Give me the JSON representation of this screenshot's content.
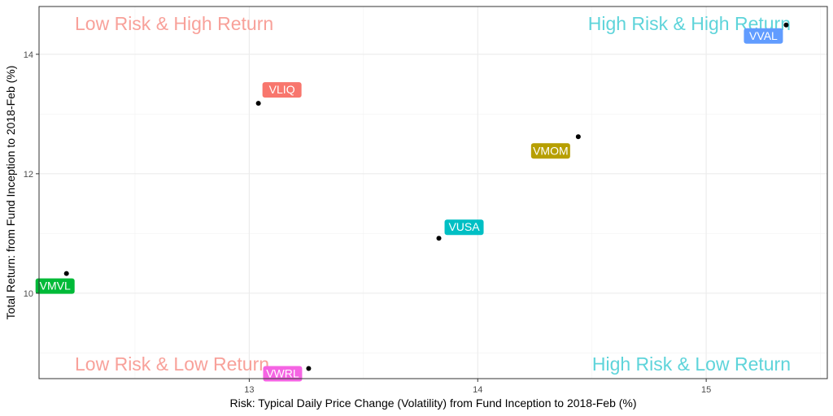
{
  "chart_data": {
    "type": "scatter",
    "xlabel": "Risk: Typical Daily Price Change (Volatility) from Fund Inception to 2018-Feb (%)",
    "ylabel": "Total Return: from Fund Inception to 2018-Feb (%)",
    "xlim": [
      12.08,
      15.53
    ],
    "ylim": [
      8.57,
      14.8
    ],
    "x_ticks": [
      13,
      14,
      15
    ],
    "y_ticks": [
      10,
      12,
      14
    ],
    "grid": true,
    "points": [
      {
        "name": "VLIQ",
        "x": 13.04,
        "y": 13.18,
        "color": "#F8766D"
      },
      {
        "name": "VMOM",
        "x": 14.44,
        "y": 12.62,
        "color": "#B79F00"
      },
      {
        "name": "VMVL",
        "x": 12.2,
        "y": 10.33,
        "color": "#00BA38"
      },
      {
        "name": "VUSA",
        "x": 13.83,
        "y": 10.92,
        "color": "#00BFC4"
      },
      {
        "name": "VVAL",
        "x": 15.35,
        "y": 14.49,
        "color": "#619CFF"
      },
      {
        "name": "VWRL",
        "x": 13.26,
        "y": 8.74,
        "color": "#F564E3"
      }
    ],
    "annotations": [
      {
        "text": "Low Risk & High Return",
        "position": "top-left",
        "color": "#F8A19A"
      },
      {
        "text": "High Risk & High Return",
        "position": "top-right",
        "color": "#5ED4DA"
      },
      {
        "text": "Low Risk & Low Return",
        "position": "bottom-left",
        "color": "#F8A19A"
      },
      {
        "text": "High Risk & Low Return",
        "position": "bottom-right",
        "color": "#5ED4DA"
      }
    ]
  }
}
